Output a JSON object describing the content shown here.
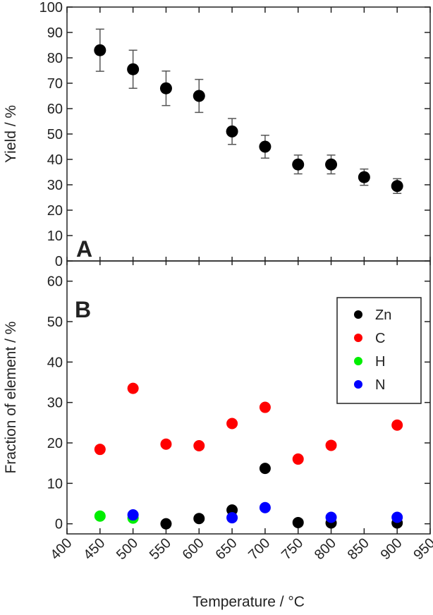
{
  "chart_data": [
    {
      "type": "scatter",
      "panel_label": "A",
      "ylabel": "Yield / %",
      "ylim": [
        0,
        100
      ],
      "yticks": [
        0,
        10,
        20,
        30,
        40,
        50,
        60,
        70,
        80,
        90,
        100
      ],
      "xlim": [
        400,
        950
      ],
      "x": [
        450,
        500,
        550,
        600,
        650,
        700,
        750,
        800,
        850,
        900
      ],
      "y": [
        83,
        75.5,
        68,
        65,
        51,
        45,
        38,
        38,
        33,
        29.5
      ],
      "yerr": [
        8.3,
        7.5,
        6.8,
        6.5,
        5.1,
        4.5,
        3.7,
        3.7,
        3.2,
        2.9
      ],
      "color": "#000000",
      "grid": false
    },
    {
      "type": "scatter",
      "panel_label": "B",
      "ylabel": "Fraction of element / %",
      "xlabel": "Temperature / °C",
      "ylim": [
        -2.5,
        65
      ],
      "yticks": [
        0,
        10,
        20,
        30,
        40,
        50,
        60
      ],
      "xlim": [
        400,
        950
      ],
      "xticks": [
        400,
        450,
        500,
        550,
        600,
        650,
        700,
        750,
        800,
        850,
        900,
        950
      ],
      "legend_position": "top-right",
      "grid": false,
      "series": [
        {
          "name": "Zn",
          "color": "#000000",
          "x": [
            550,
            600,
            650,
            700,
            750,
            800,
            900
          ],
          "y": [
            0,
            1.3,
            3.4,
            13.7,
            0.3,
            0.2,
            0.2
          ]
        },
        {
          "name": "C",
          "color": "#ff0000",
          "x": [
            450,
            500,
            550,
            600,
            650,
            700,
            750,
            800,
            900
          ],
          "y": [
            18.4,
            33.5,
            19.7,
            19.3,
            24.8,
            28.8,
            16,
            19.4,
            24.4
          ]
        },
        {
          "name": "H",
          "color": "#00ee00",
          "x": [
            450,
            500
          ],
          "y": [
            1.9,
            1.4
          ]
        },
        {
          "name": "N",
          "color": "#0000ff",
          "x": [
            500,
            650,
            700,
            800,
            900
          ],
          "y": [
            2.2,
            1.5,
            4,
            1.6,
            1.6
          ]
        }
      ]
    }
  ]
}
